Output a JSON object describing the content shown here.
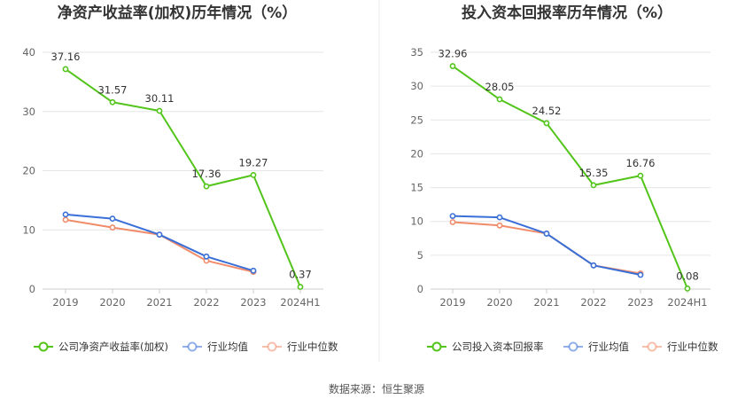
{
  "source_note": "数据来源：恒生聚源",
  "chart_data": [
    {
      "type": "line",
      "title": "净资产收益率(加权)历年情况（%）",
      "categories": [
        "2019",
        "2020",
        "2021",
        "2022",
        "2023",
        "2024H1"
      ],
      "ylim": [
        0,
        40
      ],
      "yticks": [
        0,
        10,
        20,
        30,
        40
      ],
      "grid": true,
      "legend_position": "bottom",
      "series": [
        {
          "name": "公司净资产收益率(加权)",
          "color": "#52c41a",
          "values": [
            37.16,
            31.57,
            30.11,
            17.36,
            19.27,
            0.37
          ],
          "labels": [
            "37.16",
            "31.57",
            "30.11",
            "17.36",
            "19.27",
            "0.37"
          ]
        },
        {
          "name": "行业均值",
          "color": "#3a6fd8",
          "values": [
            12.6,
            11.9,
            9.2,
            5.5,
            3.1,
            null
          ]
        },
        {
          "name": "行业中位数",
          "color": "#f08c6a",
          "values": [
            11.7,
            10.4,
            9.2,
            4.8,
            2.9,
            null
          ]
        }
      ]
    },
    {
      "type": "line",
      "title": "投入资本回报率历年情况（%）",
      "categories": [
        "2019",
        "2020",
        "2021",
        "2022",
        "2023",
        "2024H1"
      ],
      "ylim": [
        0,
        35
      ],
      "yticks": [
        0,
        5,
        10,
        15,
        20,
        25,
        30,
        35
      ],
      "grid": true,
      "legend_position": "bottom",
      "series": [
        {
          "name": "公司投入资本回报率",
          "color": "#52c41a",
          "values": [
            32.96,
            28.05,
            24.52,
            15.35,
            16.76,
            0.08
          ],
          "labels": [
            "32.96",
            "28.05",
            "24.52",
            "15.35",
            "16.76",
            "0.08"
          ]
        },
        {
          "name": "行业均值",
          "color": "#3a6fd8",
          "values": [
            10.8,
            10.6,
            8.2,
            3.5,
            2.1,
            null
          ]
        },
        {
          "name": "行业中位数",
          "color": "#f08c6a",
          "values": [
            9.9,
            9.4,
            8.2,
            3.5,
            2.3,
            null
          ]
        }
      ]
    }
  ]
}
